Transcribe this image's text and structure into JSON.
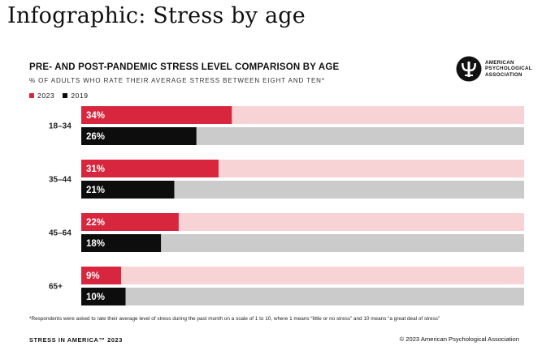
{
  "page": {
    "title": "Infographic: Stress by age"
  },
  "logo": {
    "lines": [
      "AMERICAN",
      "PSYCHOLOGICAL",
      "ASSOCIATION"
    ]
  },
  "colors": {
    "y2023": "#d7263d",
    "y2023_track": "#f8d3d6",
    "y2019": "#0d0d0d",
    "y2019_track": "#cbcbcb"
  },
  "chart_data": {
    "type": "bar",
    "orientation": "horizontal",
    "title": "PRE- AND POST-PANDEMIC STRESS LEVEL COMPARISON BY AGE",
    "subtitle": "% OF ADULTS WHO RATE THEIR AVERAGE STRESS BETWEEN EIGHT AND TEN*",
    "categories": [
      "18–34",
      "35–44",
      "45–64",
      "65+"
    ],
    "series": [
      {
        "name": "2023",
        "values": [
          34,
          31,
          22,
          9
        ],
        "labels": [
          "34%",
          "31%",
          "22%",
          "9%"
        ]
      },
      {
        "name": "2019",
        "values": [
          26,
          21,
          18,
          10
        ],
        "labels": [
          "26%",
          "21%",
          "18%",
          "10%"
        ]
      }
    ],
    "xlim": [
      0,
      100
    ],
    "legend_position": "top-left",
    "grid": false
  },
  "footnote": "*Respondents were asked to rate their average level of stress during the past month on a scale of 1 to 10, where 1 means “little or no stress” and 10 means “a great deal of stress”",
  "footer": {
    "left": "STRESS IN AMERICA™ 2023",
    "right": "© 2023 American Psychological Association"
  }
}
